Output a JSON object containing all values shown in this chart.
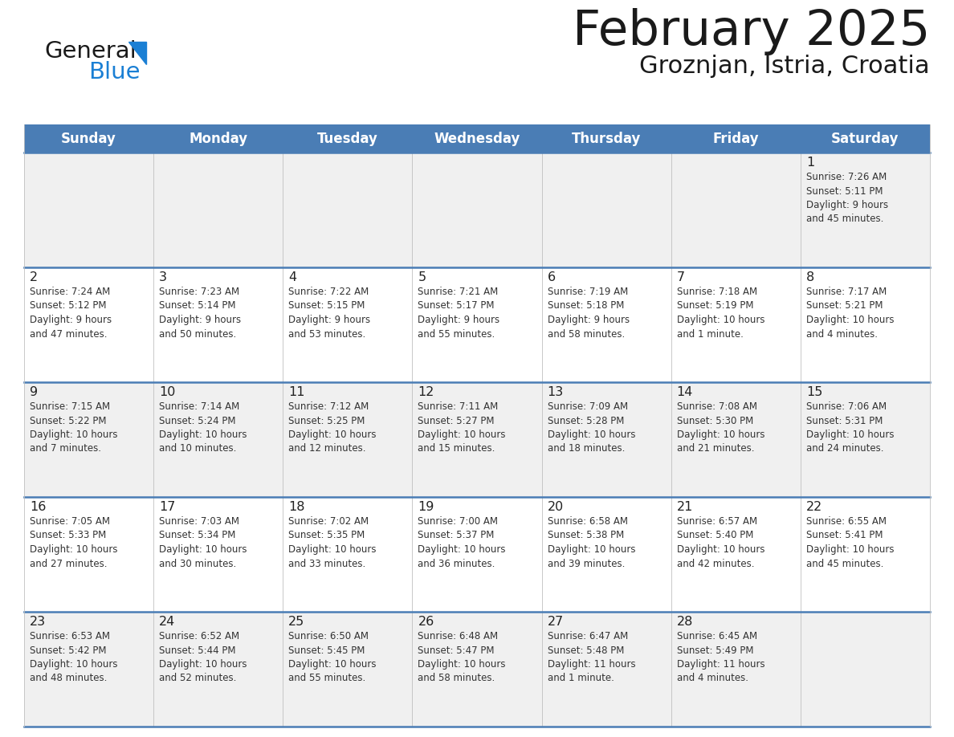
{
  "title": "February 2025",
  "subtitle": "Groznjan, Istria, Croatia",
  "days_of_week": [
    "Sunday",
    "Monday",
    "Tuesday",
    "Wednesday",
    "Thursday",
    "Friday",
    "Saturday"
  ],
  "header_bg": "#4a7db5",
  "header_text": "#FFFFFF",
  "row_bg_odd": "#f0f0f0",
  "row_bg_even": "#FFFFFF",
  "cell_text_color": "#333333",
  "day_num_color": "#222222",
  "border_color": "#4a7db5",
  "logo_color_general": "#1a1a1a",
  "logo_color_blue": "#1a7fd4",
  "logo_triangle_color": "#1a7fd4",
  "weeks": [
    [
      {
        "day": null,
        "sunrise": null,
        "sunset": null,
        "daylight": null
      },
      {
        "day": null,
        "sunrise": null,
        "sunset": null,
        "daylight": null
      },
      {
        "day": null,
        "sunrise": null,
        "sunset": null,
        "daylight": null
      },
      {
        "day": null,
        "sunrise": null,
        "sunset": null,
        "daylight": null
      },
      {
        "day": null,
        "sunrise": null,
        "sunset": null,
        "daylight": null
      },
      {
        "day": null,
        "sunrise": null,
        "sunset": null,
        "daylight": null
      },
      {
        "day": 1,
        "sunrise": "7:26 AM",
        "sunset": "5:11 PM",
        "daylight": "9 hours\nand 45 minutes."
      }
    ],
    [
      {
        "day": 2,
        "sunrise": "7:24 AM",
        "sunset": "5:12 PM",
        "daylight": "9 hours\nand 47 minutes."
      },
      {
        "day": 3,
        "sunrise": "7:23 AM",
        "sunset": "5:14 PM",
        "daylight": "9 hours\nand 50 minutes."
      },
      {
        "day": 4,
        "sunrise": "7:22 AM",
        "sunset": "5:15 PM",
        "daylight": "9 hours\nand 53 minutes."
      },
      {
        "day": 5,
        "sunrise": "7:21 AM",
        "sunset": "5:17 PM",
        "daylight": "9 hours\nand 55 minutes."
      },
      {
        "day": 6,
        "sunrise": "7:19 AM",
        "sunset": "5:18 PM",
        "daylight": "9 hours\nand 58 minutes."
      },
      {
        "day": 7,
        "sunrise": "7:18 AM",
        "sunset": "5:19 PM",
        "daylight": "10 hours\nand 1 minute."
      },
      {
        "day": 8,
        "sunrise": "7:17 AM",
        "sunset": "5:21 PM",
        "daylight": "10 hours\nand 4 minutes."
      }
    ],
    [
      {
        "day": 9,
        "sunrise": "7:15 AM",
        "sunset": "5:22 PM",
        "daylight": "10 hours\nand 7 minutes."
      },
      {
        "day": 10,
        "sunrise": "7:14 AM",
        "sunset": "5:24 PM",
        "daylight": "10 hours\nand 10 minutes."
      },
      {
        "day": 11,
        "sunrise": "7:12 AM",
        "sunset": "5:25 PM",
        "daylight": "10 hours\nand 12 minutes."
      },
      {
        "day": 12,
        "sunrise": "7:11 AM",
        "sunset": "5:27 PM",
        "daylight": "10 hours\nand 15 minutes."
      },
      {
        "day": 13,
        "sunrise": "7:09 AM",
        "sunset": "5:28 PM",
        "daylight": "10 hours\nand 18 minutes."
      },
      {
        "day": 14,
        "sunrise": "7:08 AM",
        "sunset": "5:30 PM",
        "daylight": "10 hours\nand 21 minutes."
      },
      {
        "day": 15,
        "sunrise": "7:06 AM",
        "sunset": "5:31 PM",
        "daylight": "10 hours\nand 24 minutes."
      }
    ],
    [
      {
        "day": 16,
        "sunrise": "7:05 AM",
        "sunset": "5:33 PM",
        "daylight": "10 hours\nand 27 minutes."
      },
      {
        "day": 17,
        "sunrise": "7:03 AM",
        "sunset": "5:34 PM",
        "daylight": "10 hours\nand 30 minutes."
      },
      {
        "day": 18,
        "sunrise": "7:02 AM",
        "sunset": "5:35 PM",
        "daylight": "10 hours\nand 33 minutes."
      },
      {
        "day": 19,
        "sunrise": "7:00 AM",
        "sunset": "5:37 PM",
        "daylight": "10 hours\nand 36 minutes."
      },
      {
        "day": 20,
        "sunrise": "6:58 AM",
        "sunset": "5:38 PM",
        "daylight": "10 hours\nand 39 minutes."
      },
      {
        "day": 21,
        "sunrise": "6:57 AM",
        "sunset": "5:40 PM",
        "daylight": "10 hours\nand 42 minutes."
      },
      {
        "day": 22,
        "sunrise": "6:55 AM",
        "sunset": "5:41 PM",
        "daylight": "10 hours\nand 45 minutes."
      }
    ],
    [
      {
        "day": 23,
        "sunrise": "6:53 AM",
        "sunset": "5:42 PM",
        "daylight": "10 hours\nand 48 minutes."
      },
      {
        "day": 24,
        "sunrise": "6:52 AM",
        "sunset": "5:44 PM",
        "daylight": "10 hours\nand 52 minutes."
      },
      {
        "day": 25,
        "sunrise": "6:50 AM",
        "sunset": "5:45 PM",
        "daylight": "10 hours\nand 55 minutes."
      },
      {
        "day": 26,
        "sunrise": "6:48 AM",
        "sunset": "5:47 PM",
        "daylight": "10 hours\nand 58 minutes."
      },
      {
        "day": 27,
        "sunrise": "6:47 AM",
        "sunset": "5:48 PM",
        "daylight": "11 hours\nand 1 minute."
      },
      {
        "day": 28,
        "sunrise": "6:45 AM",
        "sunset": "5:49 PM",
        "daylight": "11 hours\nand 4 minutes."
      },
      {
        "day": null,
        "sunrise": null,
        "sunset": null,
        "daylight": null
      }
    ]
  ]
}
